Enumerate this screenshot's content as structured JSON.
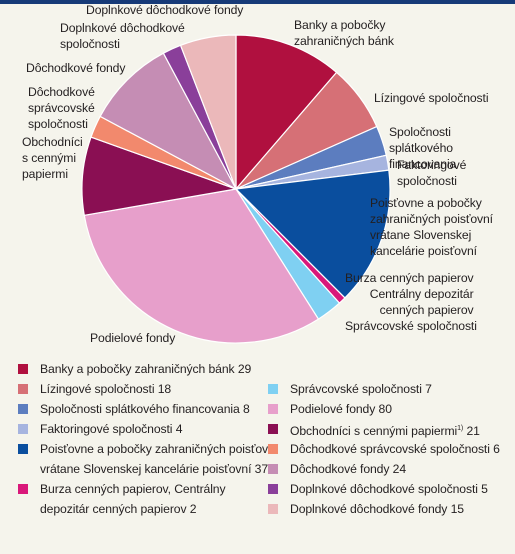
{
  "chart_data": {
    "type": "pie",
    "categories": [
      "Banky a pobočky zahraničných bánk",
      "Lízingové spoločnosti",
      "Spoločnosti splátkového financovania",
      "Faktoringové spoločnosti",
      "Poisťovne a pobočky zahraničných poisťovní vrátane Slovenskej kancelárie poisťovní",
      "Burza cenných papierov, Centrálny depozitár cenných papierov",
      "Správcovské spoločnosti",
      "Podielové fondy",
      "Obchodníci s cennými papiermi",
      "Dôchodkové správcovské spoločnosti",
      "Dôchodkové fondy",
      "Doplnkové dôchodkové spoločnosti",
      "Doplnkové dôchodkové fondy"
    ],
    "values": [
      29,
      18,
      8,
      4,
      37,
      2,
      7,
      80,
      21,
      6,
      24,
      5,
      15
    ],
    "colors": [
      "#b0103f",
      "#d67076",
      "#5c7dbf",
      "#a6b4df",
      "#0a4e9e",
      "#d9187a",
      "#7fd0f2",
      "#e79fcb",
      "#8a0f53",
      "#f2896d",
      "#c58db4",
      "#8a3f9a",
      "#ebb8ba"
    ],
    "labels": {
      "banky": "Banky a pobočky\nzahraničných bánk",
      "lizingove": "Lízingové spoločnosti",
      "splatkove": "Spoločnosti splátkového\nfinancovania",
      "faktoringove": "Faktoringové\nspoločnosti",
      "poistovne": "Poisťovne a pobočky\nzahraničných poisťovní\nvrátane Slovenskej\nkancelárie poisťovní",
      "burza": "Burza cenných papierov\nCentrálny depozitár\ncenných papierov",
      "spravcovske": "Správcovské spoločnosti",
      "podielove": "Podielové fondy",
      "obchodnici": "Obchodníci\ns cennými\npapiermi",
      "dss": "Dôchodkové\nsprávcovské\nspoločnosti",
      "dochodkove_fondy": "Dôchodkové fondy",
      "dds": "Doplnkové dôchodkové\nspoločnosti",
      "ddf": "Doplnkové dôchodkové fondy"
    }
  },
  "legend": {
    "banky": "Banky a pobočky zahraničných bánk 29",
    "lizingove": "Lízingové spoločnosti 18",
    "splatkove": "Spoločnosti splátkového financovania 8",
    "faktoringove": "Faktoringové spoločnosti 4",
    "poistovne_1": "Poisťovne a pobočky zahraničných poisťovní",
    "poistovne_2": "vrátane Slovenskej kancelárie poisťovní 37",
    "burza_1": "Burza cenných papierov, Centrálny",
    "burza_2": "depozitár cenných papierov 2",
    "spravcovske": "Správcovské spoločnosti 7",
    "podielove": "Podielové fondy 80",
    "obchodnici_a": "Obchodníci s cennými papiermi",
    "obchodnici_sup": "1)",
    "obchodnici_b": " 21",
    "dss": "Dôchodkové správcovské spoločnosti 6",
    "dochodkove_fondy": "Dôchodkové fondy 24",
    "dds": "Doplnkové dôchodkové spoločnosti 5",
    "ddf": "Doplnkové dôchodkové fondy 15"
  }
}
